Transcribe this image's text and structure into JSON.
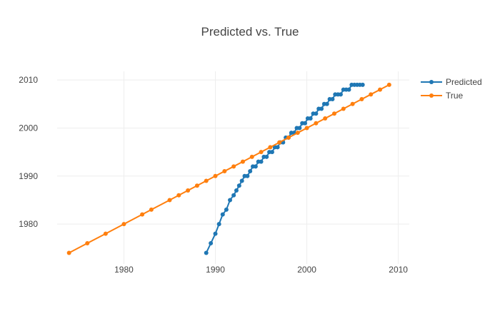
{
  "chart_data": {
    "type": "line",
    "title": "Predicted vs. True",
    "xlabel": "",
    "ylabel": "",
    "xlim": [
      1972.7,
      2011.2
    ],
    "ylim": [
      1971.7,
      2011.8
    ],
    "x_ticks": [
      1980,
      1990,
      2000,
      2010
    ],
    "y_ticks": [
      1980,
      1990,
      2000,
      2010
    ],
    "grid": true,
    "legend_position": "top-right",
    "series": [
      {
        "name": "Predicted",
        "color": "#1f77b4",
        "x": [
          1989,
          1989.5,
          1990,
          1990.4,
          1990.8,
          1991.2,
          1991.6,
          1992,
          1992.3,
          1992.6,
          1992.9,
          1993.2,
          1993.5,
          1993.8,
          1994.1,
          1994.4,
          1994.7,
          1995,
          1995.3,
          1995.6,
          1995.9,
          1996.2,
          1996.5,
          1996.8,
          1997.1,
          1997.4,
          1997.7,
          1998,
          1998.3,
          1998.6,
          1998.9,
          1999.2,
          1999.5,
          1999.8,
          2000.1,
          2000.4,
          2000.7,
          2001,
          2001.3,
          2001.6,
          2001.9,
          2002.2,
          2002.5,
          2002.8,
          2003.1,
          2003.4,
          2003.7,
          2004,
          2004.3,
          2004.6,
          2004.9,
          2005.2,
          2005.5,
          2005.8,
          2006.1
        ],
        "y": [
          1974,
          1976,
          1978,
          1980,
          1982,
          1983,
          1985,
          1986,
          1987,
          1988,
          1989,
          1990,
          1990,
          1991,
          1992,
          1992,
          1993,
          1993,
          1994,
          1994,
          1995,
          1995,
          1996,
          1996,
          1997,
          1997,
          1998,
          1998,
          1999,
          1999,
          2000,
          2000,
          2001,
          2001,
          2002,
          2002,
          2003,
          2003,
          2004,
          2004,
          2005,
          2005,
          2006,
          2006,
          2007,
          2007,
          2007,
          2008,
          2008,
          2008,
          2009,
          2009,
          2009,
          2009,
          2009
        ]
      },
      {
        "name": "True",
        "color": "#ff7f0e",
        "x": [
          1974,
          1976,
          1978,
          1980,
          1982,
          1983,
          1985,
          1986,
          1987,
          1988,
          1989,
          1990,
          1991,
          1992,
          1993,
          1994,
          1995,
          1996,
          1997,
          1998,
          1999,
          2000,
          2001,
          2002,
          2003,
          2004,
          2005,
          2006,
          2007,
          2008,
          2009
        ],
        "y": [
          1974,
          1976,
          1978,
          1980,
          1982,
          1983,
          1985,
          1986,
          1987,
          1988,
          1989,
          1990,
          1991,
          1992,
          1993,
          1994,
          1995,
          1996,
          1997,
          1998,
          1999,
          2000,
          2001,
          2002,
          2003,
          2004,
          2005,
          2006,
          2007,
          2008,
          2009
        ]
      }
    ]
  }
}
